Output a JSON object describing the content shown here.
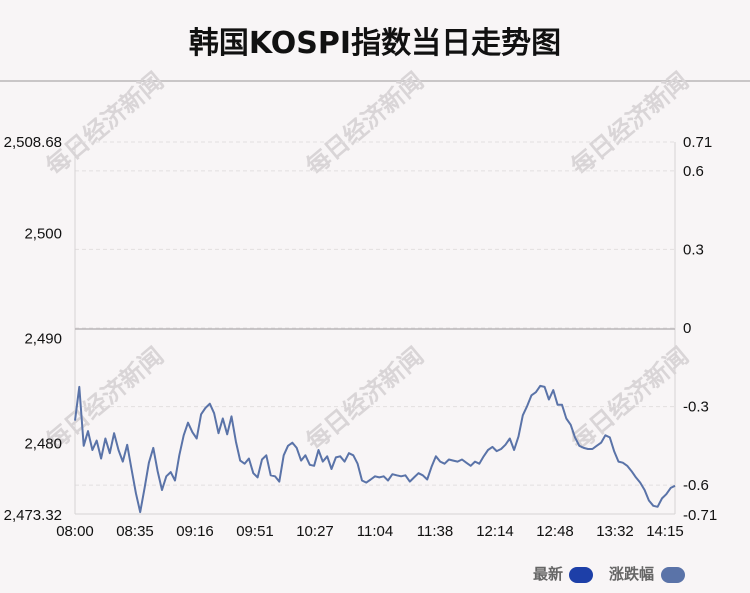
{
  "title": "韩国KOSPI指数当日走势图",
  "watermark": "每日经济新闻",
  "legend": {
    "latest_label": "最新",
    "change_label": "涨跌幅",
    "latest_color": "#1d3fa8",
    "change_color": "#5a73a8"
  },
  "chart_data": {
    "type": "line",
    "x_ticks": [
      "08:00",
      "08:35",
      "09:16",
      "09:51",
      "10:27",
      "11:04",
      "11:38",
      "12:14",
      "12:48",
      "13:32",
      "14:15"
    ],
    "y_left_ticks": [
      "2,508.68",
      "2,500",
      "2,490",
      "2,480",
      "2,473.32"
    ],
    "y_left_values": [
      2508.68,
      2500,
      2490,
      2480,
      2473.32
    ],
    "y_right_ticks": [
      "0.71",
      "0.6",
      "0.3",
      "0",
      "-0.3",
      "-0.6",
      "-0.71"
    ],
    "y_right_values": [
      0.71,
      0.6,
      0.3,
      0,
      -0.3,
      -0.6,
      -0.71
    ],
    "ylim_left": [
      2473.32,
      2508.68
    ],
    "ylim_right": [
      -0.71,
      0.71
    ],
    "reference_value": 2490.9,
    "line_color": "#5a73a8",
    "grid": true,
    "series": [
      {
        "values": [
          2482.2,
          2485.4,
          2479.8,
          2481.2,
          2479.4,
          2480.3,
          2478.6,
          2480.5,
          2479.1,
          2481.0,
          2479.4,
          2478.3,
          2479.9,
          2477.6,
          2475.3,
          2473.5,
          2475.8,
          2478.2,
          2479.6,
          2477.4,
          2475.6,
          2476.9,
          2477.3,
          2476.5,
          2478.9,
          2480.8,
          2482.0,
          2481.1,
          2480.5,
          2482.8,
          2483.4,
          2483.8,
          2482.9,
          2481.0,
          2482.4,
          2480.9,
          2482.6,
          2480.2,
          2478.4,
          2478.1,
          2478.6,
          2477.2,
          2476.8,
          2478.5,
          2478.9,
          2477.0,
          2476.9,
          2476.4,
          2478.9,
          2479.8,
          2480.1,
          2479.6,
          2478.4,
          2478.9,
          2478.0,
          2477.9,
          2479.4,
          2478.3,
          2478.8,
          2477.6,
          2478.7,
          2478.8,
          2478.3,
          2479.1,
          2478.9,
          2478.1,
          2476.5,
          2476.3,
          2476.6,
          2476.9,
          2476.8,
          2476.9,
          2476.5,
          2477.1,
          2477.0,
          2476.9,
          2477.0,
          2476.4,
          2476.8,
          2477.2,
          2477.0,
          2476.6,
          2477.8,
          2478.8,
          2478.3,
          2478.1,
          2478.5,
          2478.4,
          2478.3,
          2478.5,
          2478.2,
          2477.9,
          2478.3,
          2478.1,
          2478.8,
          2479.4,
          2479.7,
          2479.3,
          2479.5,
          2479.9,
          2480.5,
          2479.4,
          2480.7,
          2482.7,
          2483.6,
          2484.6,
          2484.9,
          2485.5,
          2485.4,
          2484.2,
          2485.1,
          2483.7,
          2483.7,
          2482.4,
          2481.8,
          2480.6,
          2479.8,
          2479.6,
          2479.5,
          2479.5,
          2479.8,
          2480.1,
          2480.8,
          2480.6,
          2479.3,
          2478.3,
          2478.2,
          2477.9,
          2477.4,
          2476.8,
          2476.3,
          2475.6,
          2474.6,
          2474.1,
          2474.0,
          2474.8,
          2475.2,
          2475.8,
          2476.0
        ]
      }
    ]
  }
}
